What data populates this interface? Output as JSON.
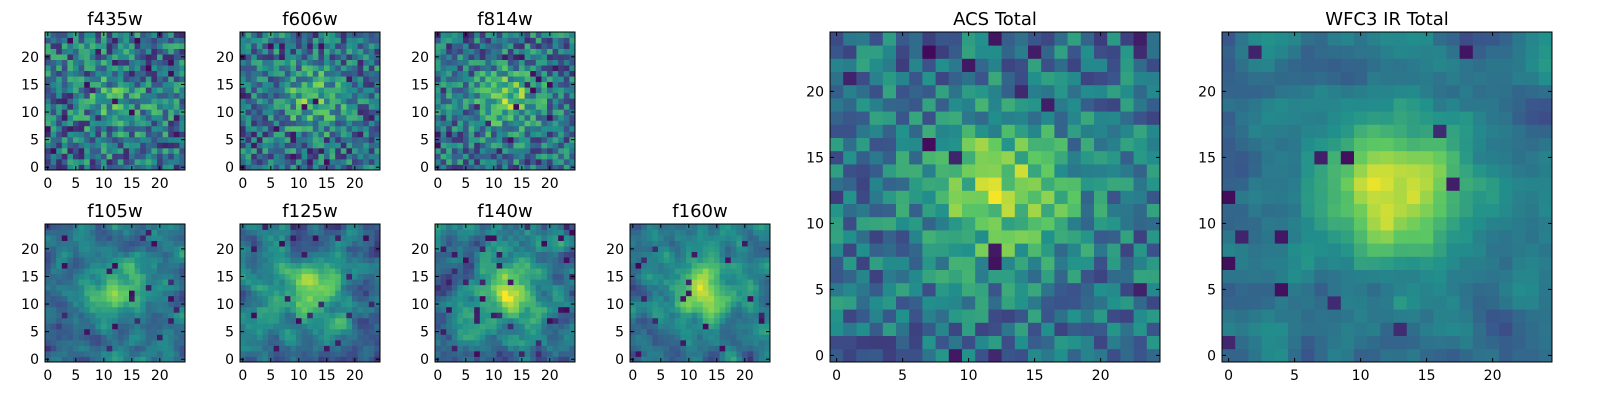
{
  "figure": {
    "colormap": "viridis",
    "colormap_stops": [
      "#440154",
      "#3b528b",
      "#21918c",
      "#5ec962",
      "#fde725"
    ]
  },
  "chart_data": [
    {
      "type": "heatmap",
      "title": "f435w",
      "grid_size": 25,
      "xlim": [
        0,
        24
      ],
      "ylim": [
        0,
        24
      ],
      "xticks": [
        0,
        5,
        10,
        15,
        20
      ],
      "yticks": [
        0,
        5,
        10,
        15,
        20
      ],
      "seed": 11,
      "peak": 0.2,
      "noise": 0.55,
      "darkfrac": 0.05,
      "smooth": 0
    },
    {
      "type": "heatmap",
      "title": "f606w",
      "grid_size": 25,
      "xlim": [
        0,
        24
      ],
      "ylim": [
        0,
        24
      ],
      "xticks": [
        0,
        5,
        10,
        15,
        20
      ],
      "yticks": [
        0,
        5,
        10,
        15,
        20
      ],
      "seed": 23,
      "peak": 0.3,
      "noise": 0.5,
      "darkfrac": 0.04,
      "smooth": 0
    },
    {
      "type": "heatmap",
      "title": "f814w",
      "grid_size": 25,
      "xlim": [
        0,
        24
      ],
      "ylim": [
        0,
        24
      ],
      "xticks": [
        0,
        5,
        10,
        15,
        20
      ],
      "yticks": [
        0,
        5,
        10,
        15,
        20
      ],
      "seed": 37,
      "peak": 0.35,
      "noise": 0.5,
      "darkfrac": 0.04,
      "smooth": 0
    },
    {
      "type": "heatmap",
      "title": "f105w",
      "grid_size": 25,
      "xlim": [
        0,
        24
      ],
      "ylim": [
        0,
        24
      ],
      "xticks": [
        0,
        5,
        10,
        15,
        20
      ],
      "yticks": [
        0,
        5,
        10,
        15,
        20
      ],
      "seed": 41,
      "peak": 0.4,
      "noise": 0.45,
      "darkfrac": 0.03,
      "smooth": 1
    },
    {
      "type": "heatmap",
      "title": "f125w",
      "grid_size": 25,
      "xlim": [
        0,
        24
      ],
      "ylim": [
        0,
        24
      ],
      "xticks": [
        0,
        5,
        10,
        15,
        20
      ],
      "yticks": [
        0,
        5,
        10,
        15,
        20
      ],
      "seed": 53,
      "peak": 0.4,
      "noise": 0.5,
      "darkfrac": 0.04,
      "smooth": 1
    },
    {
      "type": "heatmap",
      "title": "f140w",
      "grid_size": 25,
      "xlim": [
        0,
        24
      ],
      "ylim": [
        0,
        24
      ],
      "xticks": [
        0,
        5,
        10,
        15,
        20
      ],
      "yticks": [
        0,
        5,
        10,
        15,
        20
      ],
      "seed": 67,
      "peak": 0.45,
      "noise": 0.5,
      "darkfrac": 0.04,
      "smooth": 1
    },
    {
      "type": "heatmap",
      "title": "f160w",
      "grid_size": 25,
      "xlim": [
        0,
        24
      ],
      "ylim": [
        0,
        24
      ],
      "xticks": [
        0,
        5,
        10,
        15,
        20
      ],
      "yticks": [
        0,
        5,
        10,
        15,
        20
      ],
      "seed": 79,
      "peak": 0.5,
      "noise": 0.45,
      "darkfrac": 0.04,
      "smooth": 1
    },
    {
      "type": "heatmap",
      "title": "ACS Total",
      "grid_size": 25,
      "xlim": [
        0,
        24
      ],
      "ylim": [
        0,
        24
      ],
      "xticks": [
        0,
        5,
        10,
        15,
        20
      ],
      "yticks": [
        0,
        5,
        10,
        15,
        20
      ],
      "seed": 97,
      "peak": 0.45,
      "noise": 0.4,
      "darkfrac": 0.03,
      "smooth": 0
    },
    {
      "type": "heatmap",
      "title": "WFC3 IR Total",
      "grid_size": 25,
      "xlim": [
        0,
        24
      ],
      "ylim": [
        0,
        24
      ],
      "xticks": [
        0,
        5,
        10,
        15,
        20
      ],
      "yticks": [
        0,
        5,
        10,
        15,
        20
      ],
      "seed": 113,
      "peak": 0.55,
      "noise": 0.3,
      "darkfrac": 0.03,
      "smooth": 1
    }
  ]
}
